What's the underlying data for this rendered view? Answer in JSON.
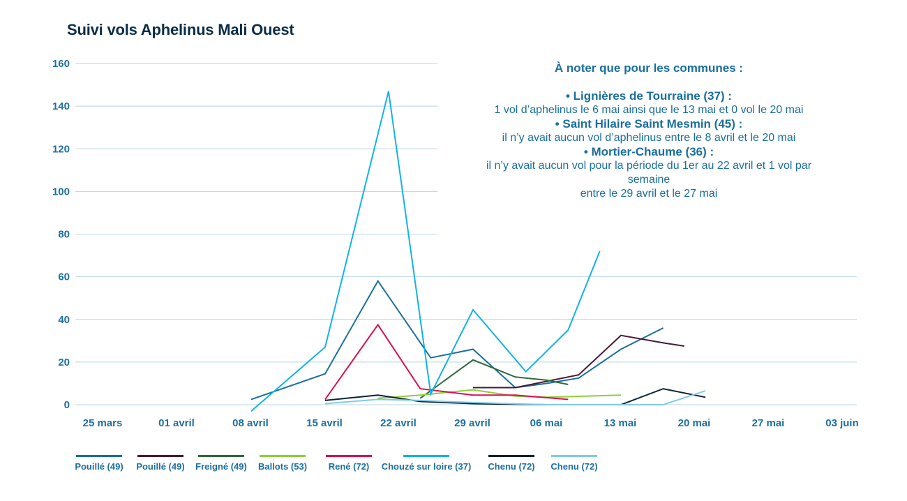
{
  "chart_data": {
    "type": "line",
    "title": "Suivi vols Aphelinus Mali Ouest",
    "x_ticks": [
      "25 mars",
      "01 avril",
      "08 avril",
      "15 avril",
      "22 avril",
      "29 avril",
      "06 mai",
      "13 mai",
      "20 mai",
      "27 mai",
      "03 juin"
    ],
    "x_start": "2024-03-25",
    "ylim": [
      0,
      160
    ],
    "y_ticks": [
      0,
      20,
      40,
      60,
      80,
      100,
      120,
      140,
      160
    ],
    "grid": true,
    "legend_position": "bottom",
    "series": [
      {
        "name": "Pouillé (49)",
        "color": "#1a6e9e",
        "points": [
          [
            14,
            2.5
          ],
          [
            21,
            14.5
          ],
          [
            26,
            58
          ],
          [
            31,
            22
          ],
          [
            35,
            26
          ],
          [
            39,
            8
          ],
          [
            42,
            10
          ],
          [
            45,
            12.5
          ],
          [
            49,
            26
          ],
          [
            53,
            36
          ]
        ]
      },
      {
        "name": "Pouillé (49)",
        "color": "#4a1a35",
        "points": [
          [
            35,
            8
          ],
          [
            39,
            8
          ],
          [
            42,
            11
          ],
          [
            45,
            14
          ],
          [
            49,
            32.5
          ],
          [
            53,
            29
          ],
          [
            55,
            27.5
          ]
        ]
      },
      {
        "name": "Freigné (49)",
        "color": "#2e6b3a",
        "points": [
          [
            30,
            3
          ],
          [
            35,
            21
          ],
          [
            39,
            13
          ],
          [
            42,
            11.5
          ],
          [
            44,
            9.5
          ]
        ]
      },
      {
        "name": "Ballots (53)",
        "color": "#8ccf3c",
        "points": [
          [
            26,
            3
          ],
          [
            30,
            4.5
          ],
          [
            35,
            7
          ],
          [
            39,
            4
          ],
          [
            42,
            3.5
          ],
          [
            49,
            4.5
          ]
        ]
      },
      {
        "name": "René (72)",
        "color": "#d8124f",
        "points": [
          [
            21,
            2.5
          ],
          [
            26,
            37.5
          ],
          [
            30,
            7.5
          ],
          [
            35,
            4.5
          ],
          [
            39,
            4.5
          ],
          [
            44,
            2.5
          ]
        ]
      },
      {
        "name": "Chouzé sur loire (37)",
        "color": "#12b3e6",
        "points": [
          [
            14,
            -3
          ],
          [
            21,
            27
          ],
          [
            27,
            147
          ],
          [
            31,
            5
          ],
          [
            35,
            44.5
          ],
          [
            40,
            15.5
          ],
          [
            44,
            35
          ],
          [
            47,
            72
          ]
        ]
      },
      {
        "name": "Chenu (72)",
        "color": "#0b2233",
        "points": [
          [
            21,
            2
          ],
          [
            26,
            4.5
          ],
          [
            30,
            1.5
          ],
          [
            35,
            0.5
          ],
          [
            42,
            0
          ],
          [
            49,
            0
          ],
          [
            53,
            7.5
          ],
          [
            57,
            3.5
          ]
        ]
      },
      {
        "name": "Chenu (72)",
        "color": "#7ecbea",
        "points": [
          [
            21,
            0.5
          ],
          [
            26,
            2.5
          ],
          [
            30,
            2
          ],
          [
            35,
            1
          ],
          [
            42,
            0
          ],
          [
            49,
            0
          ],
          [
            53,
            0
          ],
          [
            57,
            6.5
          ]
        ]
      }
    ]
  },
  "note": {
    "heading": "À noter que pour les communes :",
    "entries": [
      {
        "title": "• Lignières de Tourraine (37) :",
        "lines": [
          "1 vol d’aphelinus le 6 mai ainsi que le 13 mai et 0 vol le 20 mai"
        ]
      },
      {
        "title": "• Saint Hilaire Saint Mesmin (45) :",
        "lines": [
          "il n’y avait aucun vol d’aphelinus entre le 8 avril et le 20 mai"
        ]
      },
      {
        "title": "• Mortier-Chaume (36) :",
        "lines": [
          "il n’y avait aucun vol pour la période du 1er au 22 avril et 1 vol par",
          "semaine",
          "entre le 29 avril et le 27 mai"
        ]
      }
    ]
  }
}
